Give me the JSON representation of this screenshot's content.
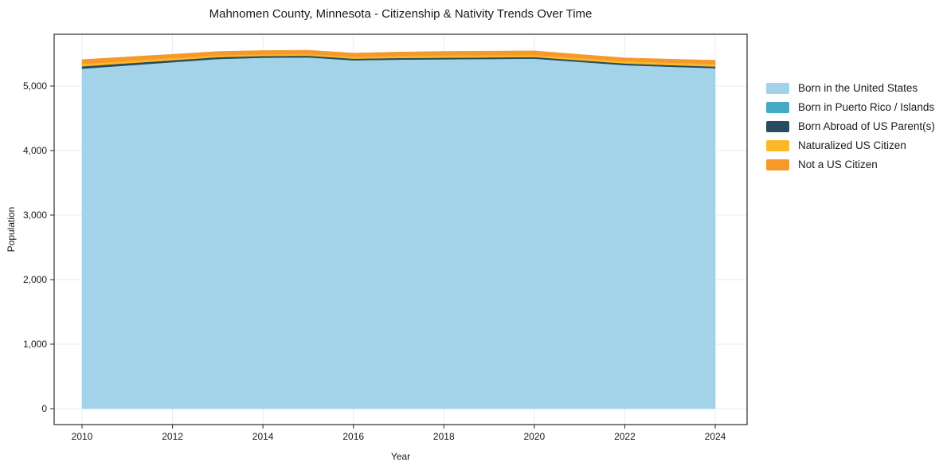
{
  "title": "Mahnomen County, Minnesota - Citizenship & Nativity Trends Over Time",
  "axes": {
    "xlabel": "Year",
    "ylabel": "Population",
    "x_ticks": [
      2010,
      2012,
      2014,
      2016,
      2018,
      2020,
      2022,
      2024
    ],
    "y_tick_labels": [
      "0",
      "1,000",
      "2,000",
      "3,000",
      "4,000",
      "5,000"
    ],
    "y_tick_values": [
      0,
      1000,
      2000,
      3000,
      4000,
      5000
    ],
    "grid": "on",
    "grid_color": "#ebebeb",
    "spine_color": "#2b2b2b"
  },
  "legend": {
    "position": "right-outside",
    "frame": "off",
    "items": [
      {
        "label": "Born in the United States",
        "color": "#a3d3e8"
      },
      {
        "label": "Born in Puerto Rico / Islands",
        "color": "#45a9c6"
      },
      {
        "label": "Born Abroad of US Parent(s)",
        "color": "#2a4a5f"
      },
      {
        "label": "Naturalized US Citizen",
        "color": "#fcb826"
      },
      {
        "label": "Not a US Citizen",
        "color": "#f6992b"
      }
    ]
  },
  "chart_data": {
    "type": "area",
    "stacked": true,
    "title": "Mahnomen County, Minnesota - Citizenship & Nativity Trends Over Time",
    "xlabel": "Year",
    "ylabel": "Population",
    "x": [
      2010,
      2011,
      2012,
      2013,
      2014,
      2015,
      2016,
      2017,
      2018,
      2019,
      2020,
      2021,
      2022,
      2023,
      2024
    ],
    "xlim": [
      2009.38,
      2024.7
    ],
    "ylim": [
      -250,
      5800
    ],
    "series": [
      {
        "name": "Born in the United States",
        "color": "#a3d3e8",
        "values": [
          5270,
          5320,
          5370,
          5420,
          5440,
          5445,
          5400,
          5410,
          5415,
          5420,
          5425,
          5375,
          5325,
          5300,
          5278
        ]
      },
      {
        "name": "Born in Puerto Rico / Islands",
        "color": "#45a9c6",
        "values": [
          0,
          0,
          0,
          0,
          0,
          0,
          0,
          0,
          0,
          0,
          0,
          0,
          0,
          0,
          0
        ]
      },
      {
        "name": "Born Abroad of US Parent(s)",
        "color": "#2a4a5f",
        "values": [
          35,
          33,
          30,
          28,
          26,
          25,
          25,
          25,
          25,
          25,
          25,
          25,
          25,
          25,
          25
        ]
      },
      {
        "name": "Naturalized US Citizen",
        "color": "#fcb826",
        "values": [
          40,
          37,
          33,
          28,
          25,
          25,
          26,
          30,
          35,
          32,
          28,
          32,
          37,
          37,
          37
        ]
      },
      {
        "name": "Not a US Citizen",
        "color": "#f6992b",
        "values": [
          65,
          62,
          60,
          60,
          60,
          60,
          60,
          62,
          62,
          65,
          68,
          58,
          50,
          55,
          60
        ]
      }
    ],
    "stacked_totals": [
      5410,
      5452,
      5493,
      5536,
      5551,
      5555,
      5511,
      5527,
      5537,
      5542,
      5546,
      5490,
      5437,
      5417,
      5400
    ]
  }
}
